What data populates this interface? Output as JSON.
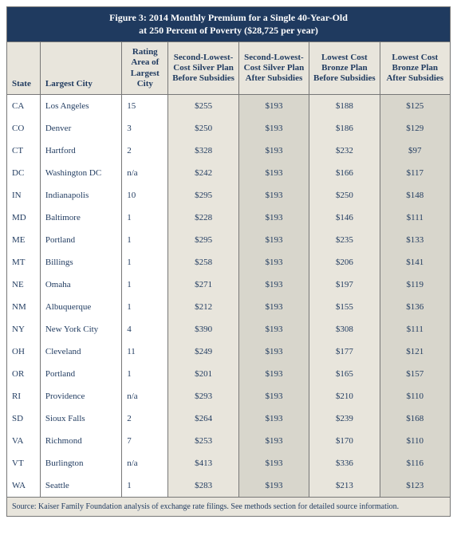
{
  "title_line1": "Figure 3: 2014 Monthly Premium for a Single 40-Year-Old",
  "title_line2": "at 250 Percent of Poverty ($28,725 per year)",
  "columns": {
    "state": "State",
    "city": "Largest City",
    "rating": "Rating Area of Largest City",
    "silver_before": "Second-Lowest-Cost Silver Plan Before Subsidies",
    "silver_after": "Second-Lowest-Cost Silver Plan After Subsidies",
    "bronze_before": "Lowest Cost Bronze Plan Before Subsidies",
    "bronze_after": "Lowest Cost Bronze Plan After Subsidies"
  },
  "rows": [
    {
      "state": "CA",
      "city": "Los Angeles",
      "rating": "15",
      "sb": "$255",
      "sa": "$193",
      "bb": "$188",
      "ba": "$125"
    },
    {
      "state": "CO",
      "city": "Denver",
      "rating": "3",
      "sb": "$250",
      "sa": "$193",
      "bb": "$186",
      "ba": "$129"
    },
    {
      "state": "CT",
      "city": "Hartford",
      "rating": "2",
      "sb": "$328",
      "sa": "$193",
      "bb": "$232",
      "ba": "$97"
    },
    {
      "state": "DC",
      "city": "Washington DC",
      "rating": "n/a",
      "sb": "$242",
      "sa": "$193",
      "bb": "$166",
      "ba": "$117"
    },
    {
      "state": "IN",
      "city": "Indianapolis",
      "rating": "10",
      "sb": "$295",
      "sa": "$193",
      "bb": "$250",
      "ba": "$148"
    },
    {
      "state": "MD",
      "city": "Baltimore",
      "rating": "1",
      "sb": "$228",
      "sa": "$193",
      "bb": "$146",
      "ba": "$111"
    },
    {
      "state": "ME",
      "city": "Portland",
      "rating": "1",
      "sb": "$295",
      "sa": "$193",
      "bb": "$235",
      "ba": "$133"
    },
    {
      "state": "MT",
      "city": "Billings",
      "rating": "1",
      "sb": "$258",
      "sa": "$193",
      "bb": "$206",
      "ba": "$141"
    },
    {
      "state": "NE",
      "city": "Omaha",
      "rating": "1",
      "sb": "$271",
      "sa": "$193",
      "bb": "$197",
      "ba": "$119"
    },
    {
      "state": "NM",
      "city": "Albuquerque",
      "rating": "1",
      "sb": "$212",
      "sa": "$193",
      "bb": "$155",
      "ba": "$136"
    },
    {
      "state": "NY",
      "city": "New York City",
      "rating": "4",
      "sb": "$390",
      "sa": "$193",
      "bb": "$308",
      "ba": "$111"
    },
    {
      "state": "OH",
      "city": "Cleveland",
      "rating": "11",
      "sb": "$249",
      "sa": "$193",
      "bb": "$177",
      "ba": "$121"
    },
    {
      "state": "OR",
      "city": "Portland",
      "rating": "1",
      "sb": "$201",
      "sa": "$193",
      "bb": "$165",
      "ba": "$157"
    },
    {
      "state": "RI",
      "city": "Providence",
      "rating": "n/a",
      "sb": "$293",
      "sa": "$193",
      "bb": "$210",
      "ba": "$110"
    },
    {
      "state": "SD",
      "city": "Sioux Falls",
      "rating": "2",
      "sb": "$264",
      "sa": "$193",
      "bb": "$239",
      "ba": "$168"
    },
    {
      "state": "VA",
      "city": "Richmond",
      "rating": "7",
      "sb": "$253",
      "sa": "$193",
      "bb": "$170",
      "ba": "$110"
    },
    {
      "state": "VT",
      "city": "Burlington",
      "rating": "n/a",
      "sb": "$413",
      "sa": "$193",
      "bb": "$336",
      "ba": "$116"
    },
    {
      "state": "WA",
      "city": "Seattle",
      "rating": "1",
      "sb": "$283",
      "sa": "$193",
      "bb": "$213",
      "ba": "$123"
    }
  ],
  "footer": "Source: Kaiser Family Foundation analysis of exchange rate filings. See methods section for detailed source information.",
  "colors": {
    "header_bg": "#1f3a5f",
    "shade_light": "#e8e5dc",
    "shade_dark": "#d8d6cc",
    "text": "#1f3a5f"
  }
}
